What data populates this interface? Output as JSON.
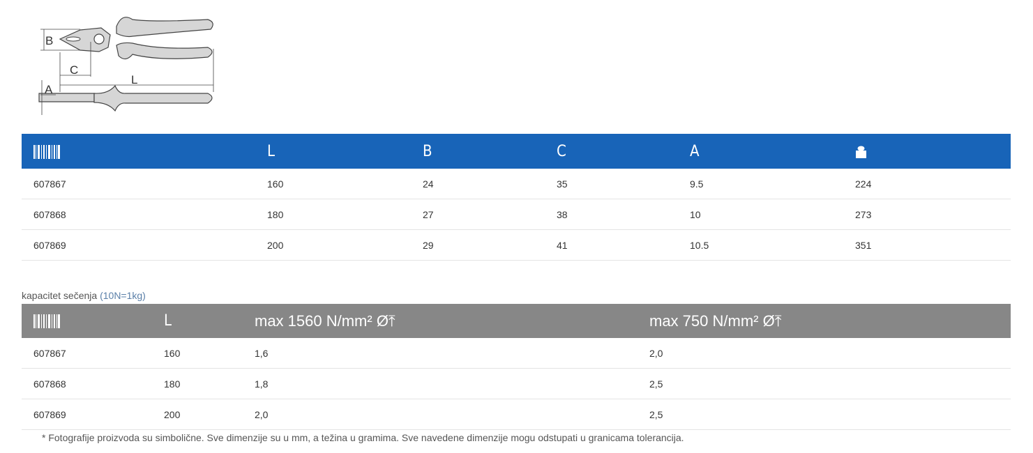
{
  "diagram": {
    "labels": {
      "b": "B",
      "c": "C",
      "l": "L",
      "a": "A"
    }
  },
  "table1": {
    "headers": {
      "code_icon": "barcode-icon",
      "l": "L",
      "b": "B",
      "c": "C",
      "a": "A",
      "weight_icon": "weight-icon"
    },
    "header_color": "#1864b8",
    "rows": [
      {
        "code": "607867",
        "l": "160",
        "b": "24",
        "c": "35",
        "a": "9.5",
        "weight": "224"
      },
      {
        "code": "607868",
        "l": "180",
        "b": "27",
        "c": "38",
        "a": "10",
        "weight": "273"
      },
      {
        "code": "607869",
        "l": "200",
        "b": "29",
        "c": "41",
        "a": "10.5",
        "weight": "351"
      }
    ]
  },
  "table2": {
    "caption": "kapacitet sečenja",
    "caption_note": "(10N=1kg)",
    "headers": {
      "code_icon": "barcode-icon",
      "l": "L",
      "max1": "max 1560 N/mm² Ø⤒",
      "max2": "max 750 N/mm² Ø⤒"
    },
    "header_color": "#878787",
    "rows": [
      {
        "code": "607867",
        "l": "160",
        "max1": "1,6",
        "max2": "2,0"
      },
      {
        "code": "607868",
        "l": "180",
        "max1": "1,8",
        "max2": "2,5"
      },
      {
        "code": "607869",
        "l": "200",
        "max1": "2,0",
        "max2": "2,5"
      }
    ]
  },
  "footnote": "* Fotografije proizvoda su simbolične. Sve dimenzije su u mm, a težina u gramima. Sve navedene dimenzije mogu odstupati u granicama tolerancija."
}
